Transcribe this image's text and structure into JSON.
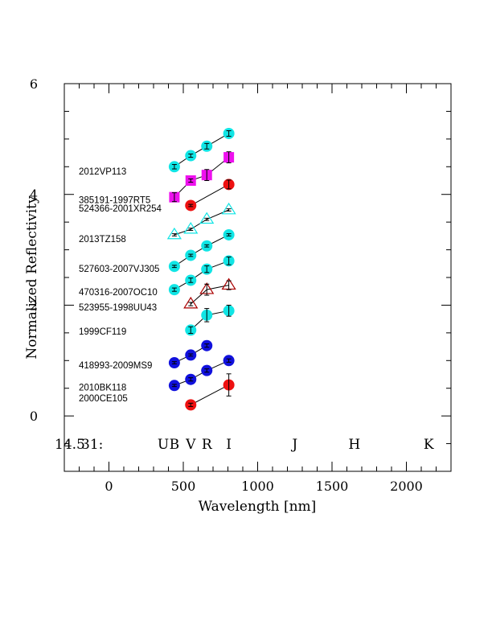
{
  "chart_data": {
    "type": "scatter",
    "xlabel": "Wavelength [nm]",
    "ylabel": "Normalized Reflectivity",
    "xlim": [
      -300,
      2300
    ],
    "ylim": [
      -1,
      6
    ],
    "xticks": [
      0,
      500,
      1000,
      1500,
      2000
    ],
    "yticks": [
      0,
      2,
      4,
      6
    ],
    "header": {
      "index": "31:",
      "magnitude": "14.5"
    },
    "bands": [
      {
        "label": "U",
        "x": 365
      },
      {
        "label": "B",
        "x": 440
      },
      {
        "label": "V",
        "x": 550
      },
      {
        "label": "R",
        "x": 658
      },
      {
        "label": "I",
        "x": 806
      },
      {
        "label": "J",
        "x": 1250
      },
      {
        "label": "H",
        "x": 1650
      },
      {
        "label": "K",
        "x": 2150
      }
    ],
    "series": [
      {
        "name": "2000CE105",
        "marker": "circle",
        "color": "#ee1111",
        "label_y": 0.32,
        "points": [
          {
            "x": 550,
            "y": 0.2,
            "err": 0.03
          },
          {
            "x": 806,
            "y": 0.56,
            "err": 0.2
          }
        ]
      },
      {
        "name": "2010BK118",
        "marker": "circle",
        "color": "#1111dd",
        "label_y": 0.52,
        "points": [
          {
            "x": 440,
            "y": 0.55,
            "err": 0.02
          },
          {
            "x": 550,
            "y": 0.66,
            "err": 0.03
          },
          {
            "x": 658,
            "y": 0.82,
            "err": 0.03
          },
          {
            "x": 806,
            "y": 1.0,
            "err": 0.03
          }
        ]
      },
      {
        "name": "418993-2009MS9",
        "marker": "circle",
        "color": "#1111dd",
        "label_y": 0.92,
        "points": [
          {
            "x": 440,
            "y": 0.96,
            "err": 0.02
          },
          {
            "x": 550,
            "y": 1.1,
            "err": 0.02
          },
          {
            "x": 658,
            "y": 1.27,
            "err": 0.03
          }
        ]
      },
      {
        "name": "1999CF119",
        "marker": "circle",
        "color": "#11e5e5",
        "label_y": 1.53,
        "points": [
          {
            "x": 550,
            "y": 1.55,
            "err": 0.06
          },
          {
            "x": 658,
            "y": 1.82,
            "err": 0.12
          },
          {
            "x": 806,
            "y": 1.9,
            "err": 0.1
          }
        ]
      },
      {
        "name": "523955-1998UU43",
        "marker": "triangle",
        "color": "#aa0000",
        "label_y": 1.96,
        "points": [
          {
            "x": 550,
            "y": 2.02,
            "err": 0.03
          },
          {
            "x": 658,
            "y": 2.28,
            "err": 0.1
          },
          {
            "x": 806,
            "y": 2.36,
            "err": 0.08
          }
        ]
      },
      {
        "name": "470316-2007OC10",
        "marker": "circle",
        "color": "#11e5e5",
        "label_y": 2.24,
        "points": [
          {
            "x": 440,
            "y": 2.28,
            "err": 0.03
          },
          {
            "x": 550,
            "y": 2.45,
            "err": 0.04
          },
          {
            "x": 658,
            "y": 2.65,
            "err": 0.06
          },
          {
            "x": 806,
            "y": 2.8,
            "err": 0.07
          }
        ]
      },
      {
        "name": "527603-2007VJ305",
        "marker": "circle",
        "color": "#11e5e5",
        "label_y": 2.66,
        "points": [
          {
            "x": 440,
            "y": 2.7,
            "err": 0.02
          },
          {
            "x": 550,
            "y": 2.9,
            "err": 0.02
          },
          {
            "x": 658,
            "y": 3.07,
            "err": 0.02
          },
          {
            "x": 806,
            "y": 3.27,
            "err": 0.02
          }
        ]
      },
      {
        "name": "2013TZ158",
        "marker": "triangle",
        "color": "#11e5e5",
        "label_y": 3.2,
        "points": [
          {
            "x": 440,
            "y": 3.27,
            "err": 0.02
          },
          {
            "x": 550,
            "y": 3.37,
            "err": 0.02
          },
          {
            "x": 658,
            "y": 3.55,
            "err": 0.02
          },
          {
            "x": 806,
            "y": 3.72,
            "err": 0.02
          }
        ]
      },
      {
        "name": "524366-2001XR254",
        "marker": "circle",
        "color": "#ee1111",
        "label_y": 3.75,
        "points": [
          {
            "x": 550,
            "y": 3.8,
            "err": 0.02
          },
          {
            "x": 806,
            "y": 4.18,
            "err": 0.08
          }
        ]
      },
      {
        "name": "385191-1997RT5",
        "marker": "square",
        "color": "#ee11ee",
        "label_y": 3.9,
        "points": [
          {
            "x": 440,
            "y": 3.95,
            "err": 0.08
          },
          {
            "x": 550,
            "y": 4.25,
            "err": 0.03
          },
          {
            "x": 658,
            "y": 4.35,
            "err": 0.1
          },
          {
            "x": 806,
            "y": 4.67,
            "err": 0.1
          }
        ]
      },
      {
        "name": "2012VP113",
        "marker": "circle",
        "color": "#11e5e5",
        "label_y": 4.42,
        "points": [
          {
            "x": 440,
            "y": 4.5,
            "err": 0.04
          },
          {
            "x": 550,
            "y": 4.7,
            "err": 0.03
          },
          {
            "x": 658,
            "y": 4.87,
            "err": 0.05
          },
          {
            "x": 806,
            "y": 5.1,
            "err": 0.05
          }
        ]
      }
    ]
  }
}
